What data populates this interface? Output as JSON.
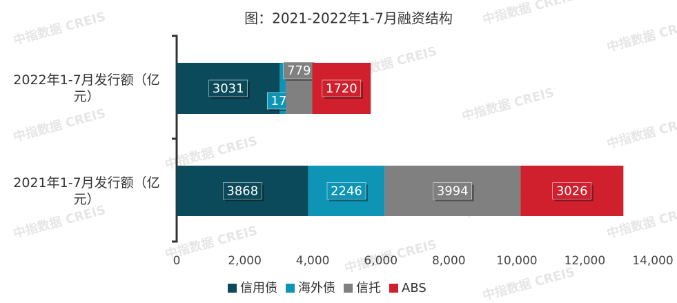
{
  "chart_data": {
    "type": "stacked-barh",
    "title": "图：2021-2022年1-7月融资结构",
    "watermark": "中指数据 CREIS",
    "categories": [
      "2022年1-7月发行额（亿元）",
      "2021年1-7月发行额（亿元）"
    ],
    "series": [
      {
        "name": "信用债",
        "color": "#0b4a5a",
        "values": [
          3031,
          3868
        ]
      },
      {
        "name": "海外债",
        "color": "#0e94b4",
        "values": [
          176,
          2246
        ]
      },
      {
        "name": "信托",
        "color": "#808080",
        "values": [
          779,
          3994
        ]
      },
      {
        "name": "ABS",
        "color": "#d0202e",
        "values": [
          1720,
          3026
        ]
      }
    ],
    "xlim": [
      0,
      14000
    ],
    "xticks": [
      0,
      {
        "value": 2000,
        "label": "2,000"
      },
      {
        "value": 4000,
        "label": "4,000"
      },
      {
        "value": 6000,
        "label": "6,000"
      },
      {
        "value": 8000,
        "label": "8,000"
      },
      {
        "value": 10000,
        "label": "10,000"
      },
      {
        "value": 12000,
        "label": "12,000"
      },
      {
        "value": 14000,
        "label": "14,000"
      }
    ],
    "legend": "bottom"
  }
}
